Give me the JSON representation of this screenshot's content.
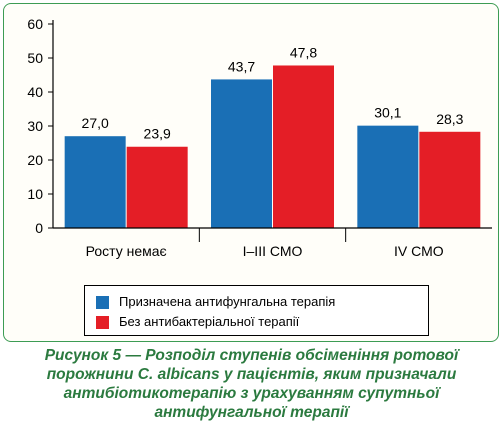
{
  "chart_data": {
    "type": "bar",
    "categories": [
      "Росту немає",
      "I–III СМО",
      "IV СМО"
    ],
    "series": [
      {
        "name": "Призначена антифунгальна терапія",
        "values": [
          27.0,
          43.7,
          30.1
        ],
        "labels": [
          "27,0",
          "43,7",
          "30,1"
        ],
        "color": "#1a6fb5"
      },
      {
        "name": "Без антибактеріальної терапії",
        "values": [
          23.9,
          47.8,
          28.3
        ],
        "labels": [
          "23,9",
          "47,8",
          "28,3"
        ],
        "color": "#e41e26"
      }
    ],
    "ylim": [
      0,
      60
    ],
    "yticks": [
      "0",
      "10",
      "20",
      "30",
      "40",
      "50",
      "60"
    ],
    "grid": false,
    "legend_position": "bottom",
    "title": "",
    "xlabel": "",
    "ylabel": ""
  },
  "caption": {
    "lines": [
      "Рисунок 5 — Розподіл ступенів обсіменіння ротової",
      "порожнини C. albicans у пацієнтів, яким призначали",
      "антибіотикотерапію з урахуванням супутньої",
      "антифунгальної терапії"
    ]
  },
  "colors": {
    "frame": "#3d9c54",
    "caption": "#2b7a3f"
  }
}
